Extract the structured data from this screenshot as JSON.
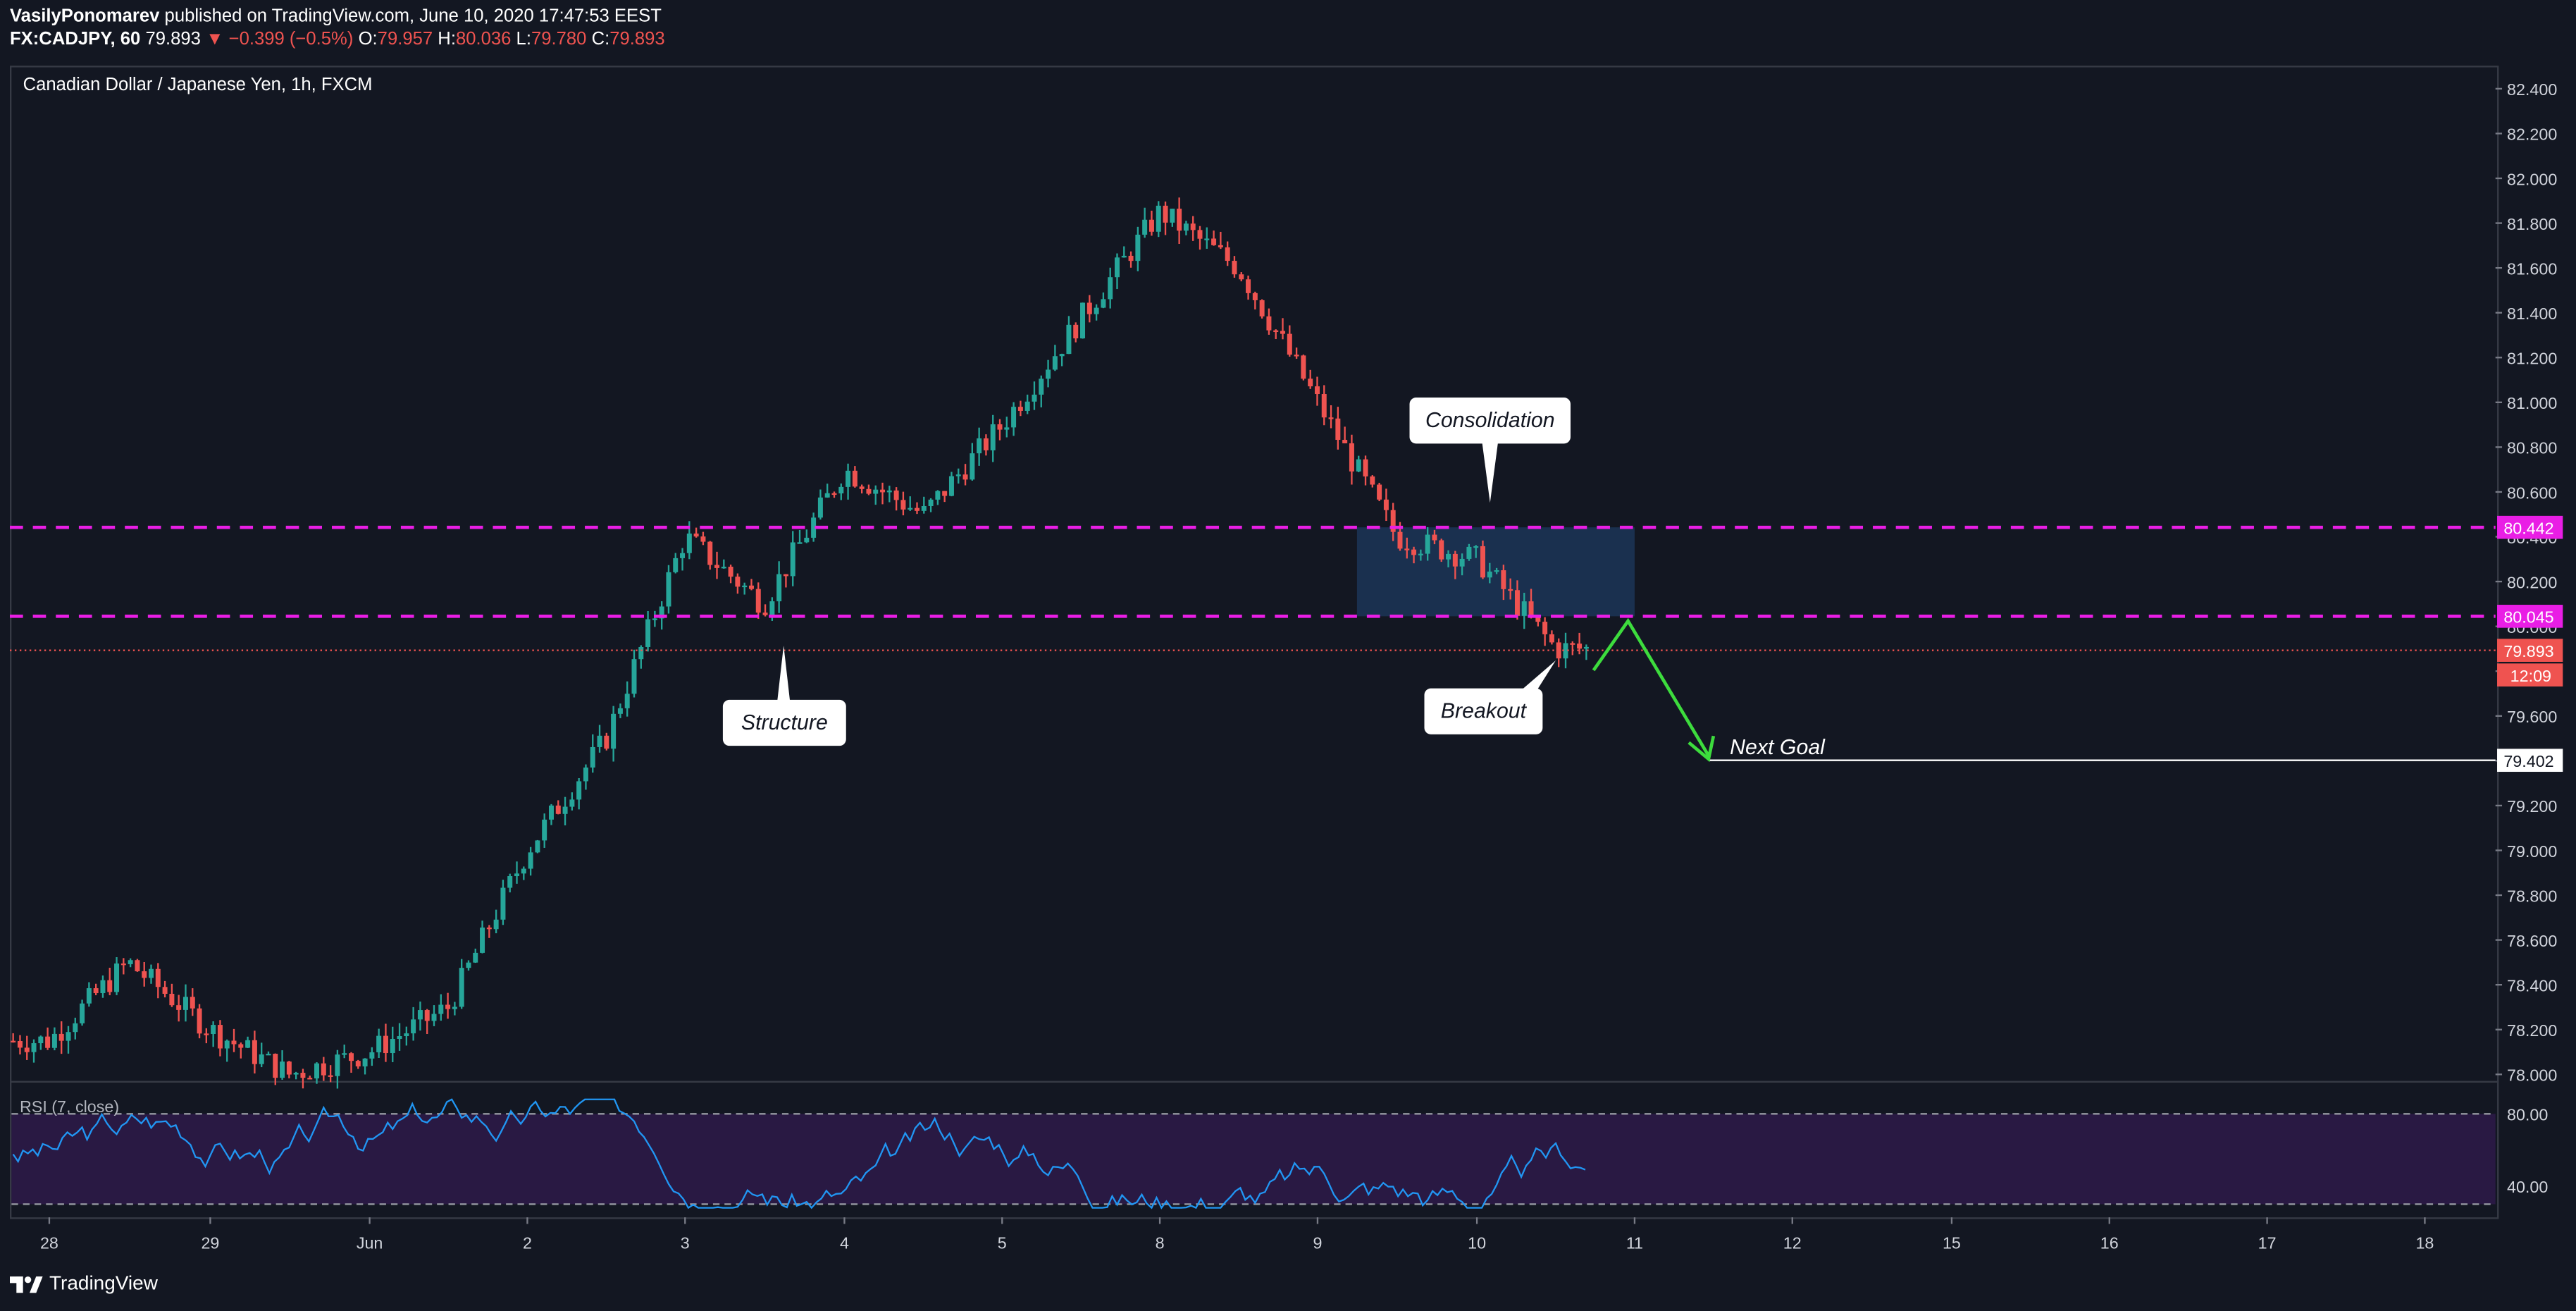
{
  "header": {
    "publisher": "VasilyPonomarev",
    "published_text": "published on TradingView.com, June 10, 2020 17:47:53 EEST",
    "symbol": "FX:CADJPY, 60",
    "last": "79.893",
    "change_arrow": "▼",
    "change": "−0.399 (−0.5%)",
    "o_label": "O:",
    "o": "79.957",
    "h_label": "H:",
    "h": "80.036",
    "l_label": "L:",
    "l": "79.780",
    "c_label": "C:",
    "c": "79.893"
  },
  "instrument_title": "Canadian Dollar / Japanese Yen, 1h, FXCM",
  "rsi_label": "RSI (7, close)",
  "footer": {
    "brand": "TradingView",
    "icon": "tradingview-logo-icon"
  },
  "colors": {
    "up": "#26a69a",
    "down": "#ef5350",
    "level": "#e91ee5",
    "rsi": "#2196f3",
    "bg": "#131722",
    "zone": "#1e3a5f"
  },
  "chart_data": {
    "type": "candlestick",
    "price_axis": {
      "min": 78.0,
      "max": 82.4,
      "ticks": [
        "82.400",
        "82.200",
        "82.000",
        "81.800",
        "81.600",
        "81.400",
        "81.200",
        "81.000",
        "80.800",
        "80.600",
        "80.400",
        "80.200",
        "80.000",
        "79.800",
        "79.600",
        "79.400",
        "79.200",
        "79.000",
        "78.800",
        "78.600",
        "78.400",
        "78.200",
        "78.000"
      ]
    },
    "time_axis": {
      "labels": [
        "28",
        "29",
        "Jun",
        "2",
        "3",
        "4",
        "5",
        "8",
        "9",
        "10",
        "11",
        "12",
        "15",
        "16",
        "17",
        "18"
      ]
    },
    "levels": [
      {
        "price": 80.442,
        "label": "80.442",
        "style": "dashed",
        "color": "#e91ee5"
      },
      {
        "price": 80.045,
        "label": "80.045",
        "style": "dashed",
        "color": "#e91ee5"
      },
      {
        "price": 79.893,
        "label": "79.893",
        "style": "dotted",
        "color": "#ef5350"
      },
      {
        "price": 79.402,
        "label": "79.402",
        "style": "solid",
        "color": "#ffffff"
      }
    ],
    "countdown": "12:09",
    "consolidation_zone": {
      "start_day": "9",
      "end_day": "10",
      "top": 80.442,
      "bottom": 80.045
    },
    "annotations": [
      "Consolidation",
      "Structure",
      "Breakout",
      "Next Goal"
    ],
    "rsi": {
      "levels": [
        "80.00",
        "40.00"
      ],
      "upper": 80,
      "lower": 30,
      "shown_labels": [
        80,
        40
      ]
    },
    "path_points": [
      [
        78.15,
        "28"
      ],
      [
        78.5,
        "28.5"
      ],
      [
        78.2,
        "29"
      ],
      [
        78.0,
        "29.5"
      ],
      [
        78.1,
        "Jun"
      ],
      [
        78.3,
        "Jun.5"
      ],
      [
        79.0,
        "2"
      ],
      [
        79.5,
        "2.5"
      ],
      [
        80.4,
        "3"
      ],
      [
        80.1,
        "3.5"
      ],
      [
        80.7,
        "4"
      ],
      [
        80.5,
        "4.5"
      ],
      [
        80.9,
        "5"
      ],
      [
        81.85,
        "8"
      ],
      [
        81.6,
        "8.5"
      ],
      [
        81.0,
        "9"
      ],
      [
        80.4,
        "9.5"
      ],
      [
        80.3,
        "10"
      ],
      [
        79.9,
        "10.5"
      ]
    ]
  }
}
